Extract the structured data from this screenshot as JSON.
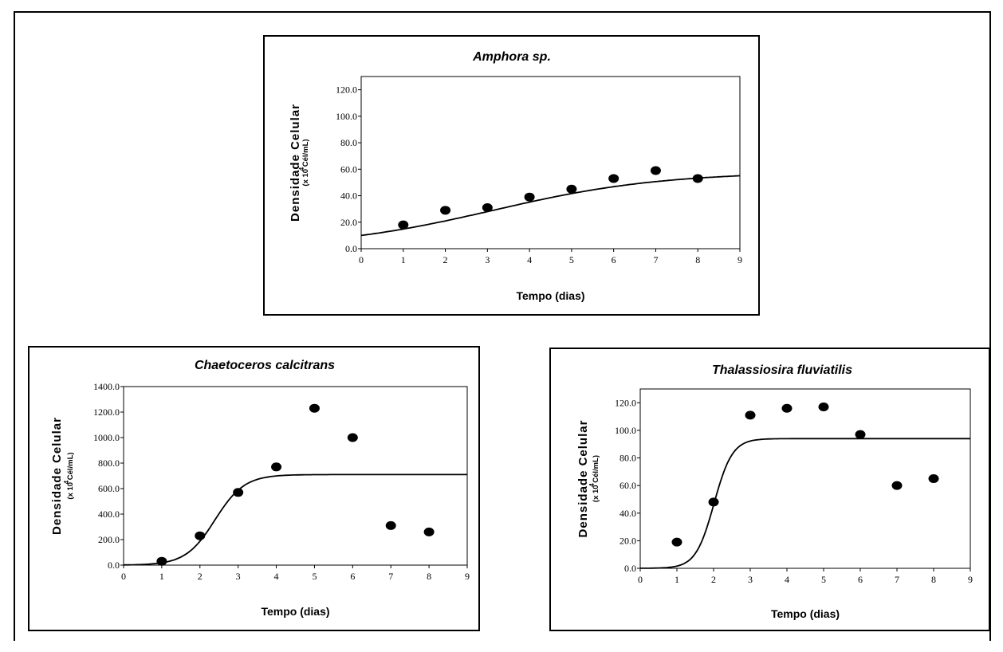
{
  "chart_data": [
    {
      "type": "scatter",
      "title": "Amphora sp.",
      "xlabel": "Tempo (dias)",
      "ylabel": "Densidade Celular",
      "yunit": "(x 10 Cél/mL)",
      "yunit_exp": "4",
      "xlim": [
        0,
        9
      ],
      "ylim": [
        0,
        130
      ],
      "xticks": [
        "0",
        "1",
        "2",
        "3",
        "4",
        "5",
        "6",
        "7",
        "8",
        "9"
      ],
      "yticks": [
        0,
        20,
        40,
        60,
        80,
        100,
        120
      ],
      "ytick_labels": [
        "0.0",
        "20.0",
        "40.0",
        "60.0",
        "80.0",
        "100.0",
        "120.0"
      ],
      "points": {
        "x": [
          1,
          2,
          3,
          4,
          5,
          6,
          7,
          8
        ],
        "y": [
          18,
          29,
          31,
          39,
          45,
          53,
          59,
          53
        ]
      },
      "fit": {
        "label": "",
        "model": "logistic",
        "K": 58,
        "r": 0.5,
        "N0": 10
      }
    },
    {
      "type": "scatter",
      "title": "Chaetoceros calcitrans",
      "xlabel": "Tempo (dias)",
      "ylabel": "Densidade Celular",
      "yunit": "(x 10 Cél/mL)",
      "yunit_exp": "4",
      "xlim": [
        0,
        9
      ],
      "ylim": [
        0,
        1400
      ],
      "xticks": [
        "0",
        "1",
        "2",
        "3",
        "4",
        "5",
        "6",
        "7",
        "8",
        "9"
      ],
      "yticks": [
        0,
        200,
        400,
        600,
        800,
        1000,
        1200,
        1400
      ],
      "ytick_labels": [
        "0.0",
        "200.0",
        "400.0",
        "600.0",
        "800.0",
        "1000.0",
        "1200.0",
        "1400.0"
      ],
      "points": {
        "x": [
          1,
          2,
          3,
          4,
          5,
          6,
          7,
          8
        ],
        "y": [
          30,
          230,
          570,
          770,
          1230,
          1000,
          310,
          260
        ]
      },
      "fit": {
        "label": "",
        "model": "logistic",
        "K": 710,
        "r": 2.6,
        "N0": 1.4
      }
    },
    {
      "type": "scatter",
      "title": "Thalassiosira fluviatilis",
      "xlabel": "Tempo (dias)",
      "ylabel": "Densidade Celular",
      "yunit": "(x 10 Cél/mL)",
      "yunit_exp": "4",
      "xlim": [
        0,
        9
      ],
      "ylim": [
        0,
        130
      ],
      "xticks": [
        "0",
        "1",
        "2",
        "3",
        "4",
        "5",
        "6",
        "7",
        "8",
        "9"
      ],
      "yticks": [
        0,
        20,
        40,
        60,
        80,
        100,
        120
      ],
      "ytick_labels": [
        "0.0",
        "20.0",
        "40.0",
        "60.0",
        "80.0",
        "100.0",
        "120.0"
      ],
      "points": {
        "x": [
          1,
          2,
          3,
          4,
          5,
          6,
          7,
          8
        ],
        "y": [
          19,
          48,
          111,
          116,
          117,
          97,
          60,
          65
        ]
      },
      "fit": {
        "label": "",
        "model": "logistic",
        "K": 94,
        "r": 4.0,
        "N0": 0.03
      }
    }
  ]
}
